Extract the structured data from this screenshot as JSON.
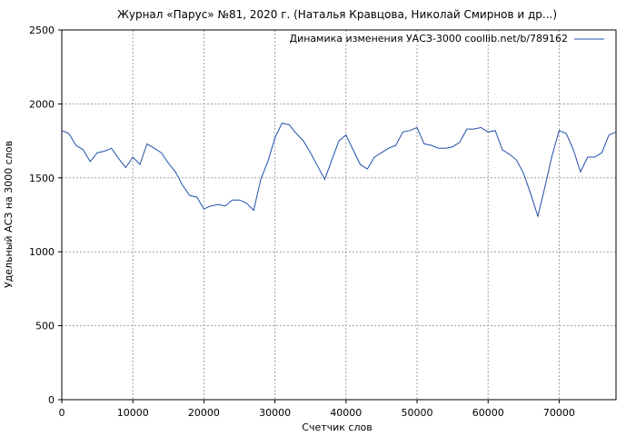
{
  "chart_data": {
    "type": "line",
    "title": "Журнал «Парус» №81, 2020 г. (Наталья Кравцова, Николай Смирнов и др...)",
    "xlabel": "Счетчик слов",
    "ylabel": "Удельный АСЗ на 3000 слов",
    "xlim": [
      0,
      78000
    ],
    "ylim": [
      0,
      2500
    ],
    "xticks": [
      0,
      10000,
      20000,
      30000,
      40000,
      50000,
      60000,
      70000
    ],
    "yticks": [
      0,
      500,
      1000,
      1500,
      2000,
      2500
    ],
    "grid": true,
    "legend_position": "top-right",
    "series": [
      {
        "name": "Динамика изменения УАСЗ-3000 coollib.net/b/789162",
        "color": "#1f4fa8",
        "x": [
          0,
          1000,
          2000,
          3000,
          4000,
          5000,
          6000,
          7000,
          8000,
          9000,
          10000,
          11000,
          12000,
          13000,
          14000,
          15000,
          16000,
          17000,
          18000,
          19000,
          20000,
          21000,
          22000,
          23000,
          24000,
          25000,
          26000,
          27000,
          28000,
          29000,
          30000,
          31000,
          32000,
          33000,
          34000,
          35000,
          36000,
          37000,
          38000,
          39000,
          40000,
          41000,
          42000,
          43000,
          44000,
          45000,
          46000,
          47000,
          48000,
          49000,
          50000,
          51000,
          52000,
          53000,
          54000,
          55000,
          56000,
          57000,
          58000,
          59000,
          60000,
          61000,
          62000,
          63000,
          64000,
          65000,
          66000,
          67000,
          68000,
          69000,
          70000,
          71000,
          72000,
          73000,
          74000,
          75000,
          76000,
          77000,
          78000
        ],
        "y": [
          1820,
          1800,
          1720,
          1690,
          1610,
          1670,
          1680,
          1700,
          1630,
          1570,
          1640,
          1590,
          1730,
          1700,
          1670,
          1600,
          1540,
          1450,
          1380,
          1370,
          1290,
          1310,
          1320,
          1310,
          1350,
          1350,
          1330,
          1280,
          1490,
          1610,
          1770,
          1870,
          1860,
          1800,
          1750,
          1670,
          1580,
          1490,
          1620,
          1750,
          1790,
          1690,
          1590,
          1560,
          1640,
          1670,
          1700,
          1720,
          1810,
          1820,
          1840,
          1730,
          1720,
          1700,
          1700,
          1710,
          1740,
          1830,
          1830,
          1840,
          1810,
          1820,
          1690,
          1660,
          1620,
          1530,
          1390,
          1240,
          1440,
          1650,
          1820,
          1800,
          1690,
          1540,
          1640,
          1640,
          1670,
          1790,
          1810
        ]
      }
    ]
  }
}
